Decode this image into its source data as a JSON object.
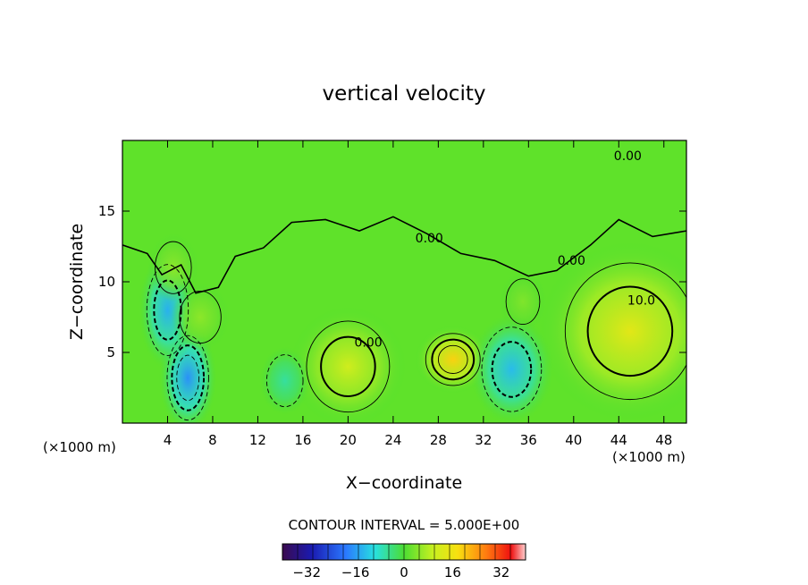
{
  "chart_data": {
    "type": "heatmap",
    "title": "vertical velocity",
    "xlabel": "X−coordinate",
    "ylabel": "Z−coordinate",
    "x_unit_label": "(×1000 m)",
    "y_unit_label": "(×1000 m)",
    "xlim": [
      0,
      50
    ],
    "ylim": [
      0,
      20
    ],
    "x_ticks": [
      4,
      8,
      12,
      16,
      20,
      24,
      28,
      32,
      36,
      40,
      44,
      48
    ],
    "y_ticks": [
      5,
      10,
      15
    ],
    "contour_interval_text": "CONTOUR INTERVAL = 5.000E+00",
    "contour_labels": [
      {
        "text": "0.00",
        "x": 21.8,
        "y": 5.4
      },
      {
        "text": "0.00",
        "x": 27.2,
        "y": 12.8
      },
      {
        "text": "0.00",
        "x": 39.8,
        "y": 11.2
      },
      {
        "text": "0.00",
        "x": 44.8,
        "y": 18.6
      },
      {
        "text": "10.0",
        "x": 46.0,
        "y": 8.4
      }
    ],
    "colorbar": {
      "range": [
        -40,
        40
      ],
      "ticks": [
        -32,
        -16,
        0,
        16,
        32
      ],
      "tick_labels": [
        "−32",
        "−16",
        "0",
        "16",
        "32"
      ]
    },
    "features": [
      {
        "kind": "updraft",
        "x": 29.3,
        "z": 4.5,
        "peak": 19
      },
      {
        "kind": "updraft",
        "x": 45.0,
        "z": 6.5,
        "peak": 14
      },
      {
        "kind": "updraft",
        "x": 20.0,
        "z": 4.0,
        "peak": 11
      },
      {
        "kind": "downdraft",
        "x": 5.8,
        "z": 3.2,
        "peak": -17
      },
      {
        "kind": "downdraft",
        "x": 4.0,
        "z": 8.0,
        "peak": -14
      },
      {
        "kind": "downdraft",
        "x": 34.5,
        "z": 3.8,
        "peak": -13
      },
      {
        "kind": "downdraft",
        "x": 14.4,
        "z": 3.0,
        "peak": -6
      },
      {
        "kind": "updraft",
        "x": 6.9,
        "z": 7.5,
        "peak": 5
      },
      {
        "kind": "updraft",
        "x": 4.5,
        "z": 11.0,
        "peak": 5
      },
      {
        "kind": "updraft",
        "x": 35.5,
        "z": 8.6,
        "peak": 4
      }
    ]
  }
}
